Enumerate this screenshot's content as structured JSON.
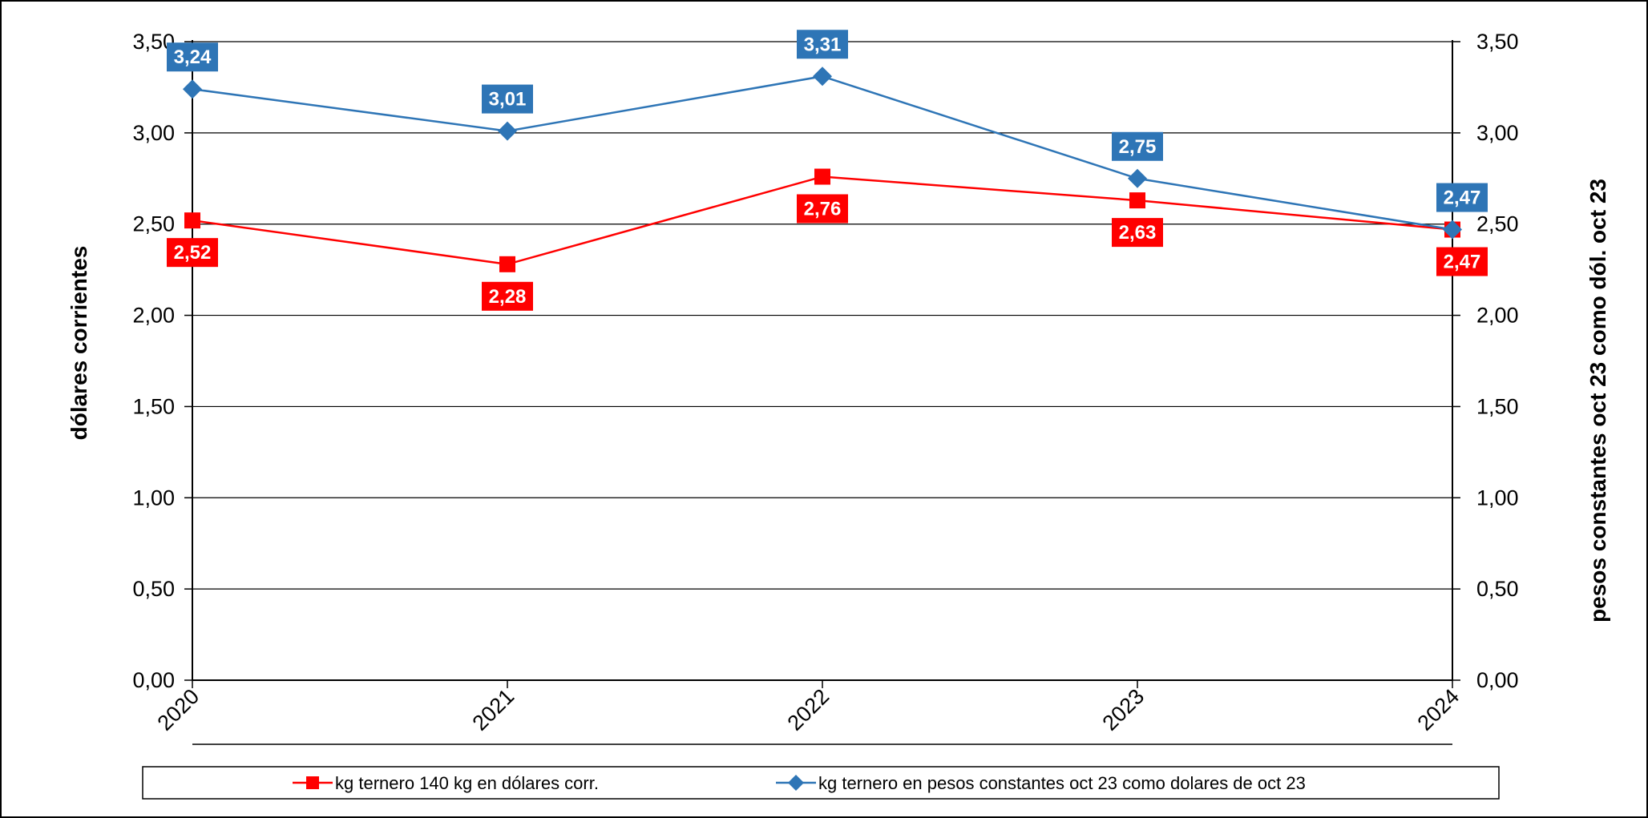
{
  "chart_data": {
    "type": "line",
    "categories": [
      "2020",
      "2021",
      "2022",
      "2023",
      "2024"
    ],
    "ylabel": "dólares corrientes",
    "y2label": "pesos constantes  oct 23  como dól. oct 23",
    "ylim": [
      0,
      3.5
    ],
    "y2lim": [
      0,
      3.5
    ],
    "yticks": [
      "0,00",
      "0,50",
      "1,00",
      "1,50",
      "2,00",
      "2,50",
      "3,00",
      "3,50"
    ],
    "grid": true,
    "legend_position": "bottom",
    "series": [
      {
        "name": "kg ternero 140 kg en dólares corr.",
        "values": [
          2.52,
          2.28,
          2.76,
          2.63,
          2.47
        ],
        "labels": [
          "2,52",
          "2,28",
          "2,76",
          "2,63",
          "2,47"
        ],
        "color": "#ff0000",
        "marker": "square",
        "axis": "left"
      },
      {
        "name": "kg ternero en pesos constantes oct 23 como dolares de oct 23",
        "values": [
          3.24,
          3.01,
          3.31,
          2.75,
          2.47
        ],
        "labels": [
          "3,24",
          "3,01",
          "3,31",
          "2,75",
          "2,47"
        ],
        "color": "#2e75b6",
        "marker": "diamond",
        "axis": "right"
      }
    ]
  }
}
